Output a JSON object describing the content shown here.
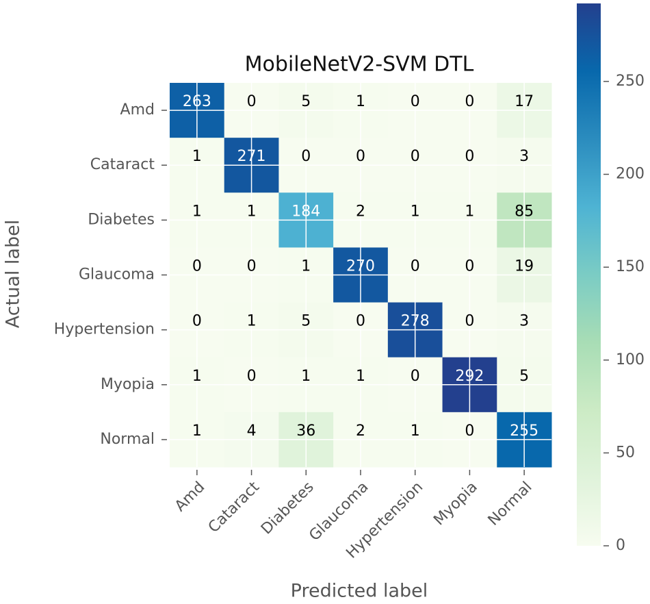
{
  "chart_data": {
    "type": "heatmap",
    "title": "MobileNetV2-SVM DTL",
    "xlabel": "Predicted label",
    "ylabel": "Actual label",
    "x_categories": [
      "Amd",
      "Cataract",
      "Diabetes",
      "Glaucoma",
      "Hypertension",
      "Myopia",
      "Normal"
    ],
    "y_categories": [
      "Amd",
      "Cataract",
      "Diabetes",
      "Glaucoma",
      "Hypertension",
      "Myopia",
      "Normal"
    ],
    "values": [
      [
        263,
        0,
        5,
        1,
        0,
        0,
        17
      ],
      [
        1,
        271,
        0,
        0,
        0,
        0,
        3
      ],
      [
        1,
        1,
        184,
        2,
        1,
        1,
        85
      ],
      [
        0,
        0,
        1,
        270,
        0,
        0,
        19
      ],
      [
        0,
        1,
        5,
        0,
        278,
        0,
        3
      ],
      [
        1,
        0,
        1,
        1,
        0,
        292,
        5
      ],
      [
        1,
        4,
        36,
        2,
        1,
        0,
        255
      ]
    ],
    "colormap": "GnBu",
    "clim": [
      0,
      292
    ],
    "cticks": [
      0,
      50,
      100,
      150,
      200,
      250
    ],
    "grid": true
  }
}
